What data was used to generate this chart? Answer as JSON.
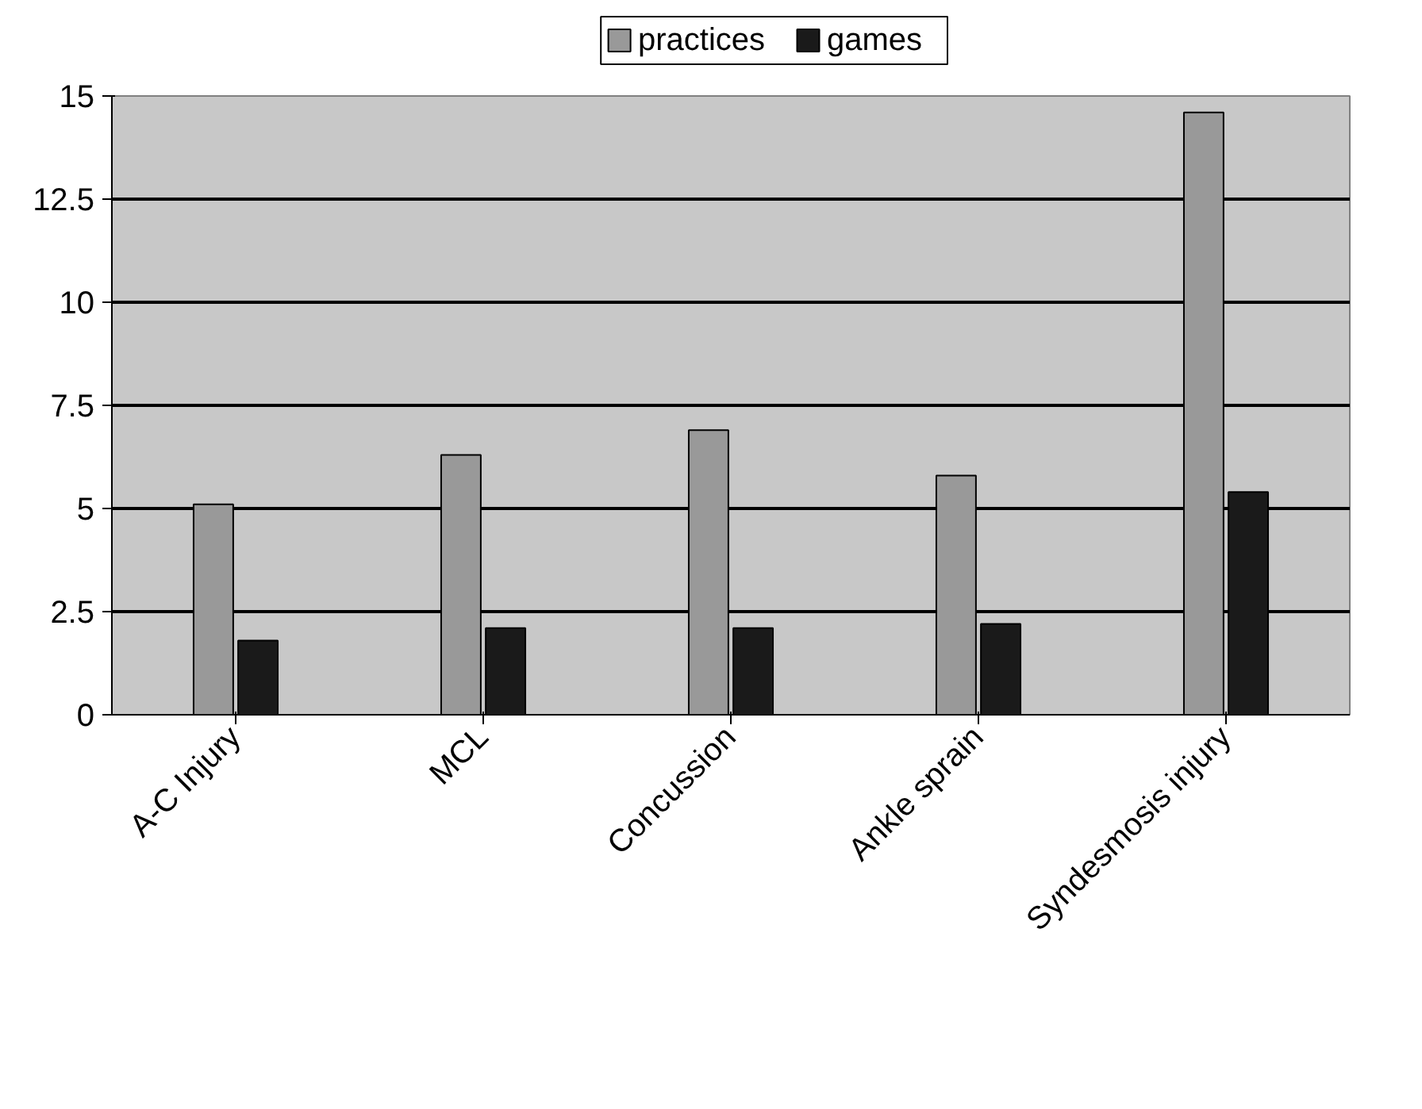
{
  "chart_data": {
    "type": "bar",
    "categories": [
      "A-C Injury",
      "MCL",
      "Concussion",
      "Ankle sprain",
      "Syndesmosis injury"
    ],
    "series": [
      {
        "name": "practices",
        "color": "#999999",
        "values": [
          5.1,
          6.3,
          6.9,
          5.8,
          14.6
        ]
      },
      {
        "name": "games",
        "color": "#1a1a1a",
        "values": [
          1.8,
          2.1,
          2.1,
          2.2,
          5.4
        ]
      }
    ],
    "ylim": [
      0,
      15
    ],
    "yticks": [
      0,
      2.5,
      5,
      7.5,
      10,
      12.5,
      15
    ],
    "grid": "y",
    "legend": "top"
  }
}
